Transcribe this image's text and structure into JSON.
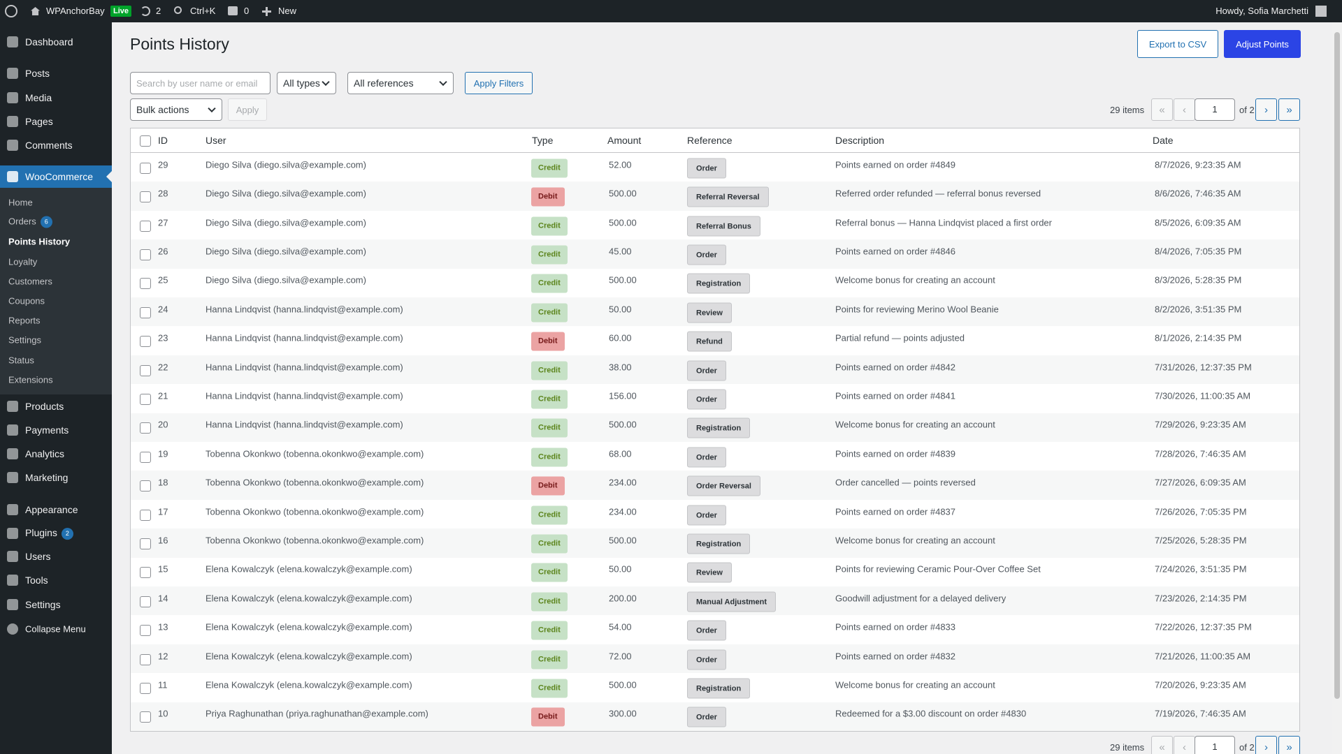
{
  "admin_bar": {
    "site": "WPAnchorBay",
    "live": "Live",
    "updates": 2,
    "search": "Ctrl+K",
    "comments": 0,
    "new": "New",
    "howdy": "Howdy, Sofia Marchetti"
  },
  "menu": {
    "top": [
      "Dashboard",
      "Posts",
      "Media",
      "Pages",
      "Comments"
    ],
    "woo": "WooCommerce",
    "woo_sub": [
      {
        "label": "Home"
      },
      {
        "label": "Orders",
        "badge": 6
      },
      {
        "label": "Points History"
      },
      {
        "label": "Loyalty"
      },
      {
        "label": "Customers"
      },
      {
        "label": "Coupons"
      },
      {
        "label": "Reports"
      },
      {
        "label": "Settings"
      },
      {
        "label": "Status"
      },
      {
        "label": "Extensions"
      }
    ],
    "bottom": [
      {
        "label": "Products"
      },
      {
        "label": "Payments"
      },
      {
        "label": "Analytics"
      },
      {
        "label": "Marketing"
      },
      {
        "label": "Appearance"
      },
      {
        "label": "Plugins",
        "badge": 2
      },
      {
        "label": "Users"
      },
      {
        "label": "Tools"
      },
      {
        "label": "Settings"
      },
      {
        "label": "Collapse Menu"
      }
    ]
  },
  "header": {
    "title": "Points History",
    "export": "Export to CSV",
    "adjust": "Adjust Points"
  },
  "filters": {
    "search_placeholder": "Search by user name or email",
    "types": "All types",
    "references": "All references",
    "apply_filters": "Apply Filters",
    "bulk": "Bulk actions",
    "apply": "Apply"
  },
  "pagination": {
    "items": "29 items",
    "first": "«",
    "prev": "‹",
    "page": "1",
    "of": "of 2",
    "next": "›",
    "last": "»"
  },
  "table": {
    "columns": [
      "ID",
      "User",
      "Type",
      "Amount",
      "Reference",
      "Description",
      "Date"
    ],
    "rows": [
      [
        "29",
        "Diego Silva (diego.silva@example.com)",
        "Credit",
        "52.00",
        "Order",
        "Points earned on order #4849",
        "8/7/2026, 9:23:35 AM"
      ],
      [
        "28",
        "Diego Silva (diego.silva@example.com)",
        "Debit",
        "500.00",
        "Referral Reversal",
        "Referred order refunded — referral bonus reversed",
        "8/6/2026, 7:46:35 AM"
      ],
      [
        "27",
        "Diego Silva (diego.silva@example.com)",
        "Credit",
        "500.00",
        "Referral Bonus",
        "Referral bonus — Hanna Lindqvist placed a first order",
        "8/5/2026, 6:09:35 AM"
      ],
      [
        "26",
        "Diego Silva (diego.silva@example.com)",
        "Credit",
        "45.00",
        "Order",
        "Points earned on order #4846",
        "8/4/2026, 7:05:35 PM"
      ],
      [
        "25",
        "Diego Silva (diego.silva@example.com)",
        "Credit",
        "500.00",
        "Registration",
        "Welcome bonus for creating an account",
        "8/3/2026, 5:28:35 PM"
      ],
      [
        "24",
        "Hanna Lindqvist (hanna.lindqvist@example.com)",
        "Credit",
        "50.00",
        "Review",
        "Points for reviewing Merino Wool Beanie",
        "8/2/2026, 3:51:35 PM"
      ],
      [
        "23",
        "Hanna Lindqvist (hanna.lindqvist@example.com)",
        "Debit",
        "60.00",
        "Refund",
        "Partial refund — points adjusted",
        "8/1/2026, 2:14:35 PM"
      ],
      [
        "22",
        "Hanna Lindqvist (hanna.lindqvist@example.com)",
        "Credit",
        "38.00",
        "Order",
        "Points earned on order #4842",
        "7/31/2026, 12:37:35 PM"
      ],
      [
        "21",
        "Hanna Lindqvist (hanna.lindqvist@example.com)",
        "Credit",
        "156.00",
        "Order",
        "Points earned on order #4841",
        "7/30/2026, 11:00:35 AM"
      ],
      [
        "20",
        "Hanna Lindqvist (hanna.lindqvist@example.com)",
        "Credit",
        "500.00",
        "Registration",
        "Welcome bonus for creating an account",
        "7/29/2026, 9:23:35 AM"
      ],
      [
        "19",
        "Tobenna Okonkwo (tobenna.okonkwo@example.com)",
        "Credit",
        "68.00",
        "Order",
        "Points earned on order #4839",
        "7/28/2026, 7:46:35 AM"
      ],
      [
        "18",
        "Tobenna Okonkwo (tobenna.okonkwo@example.com)",
        "Debit",
        "234.00",
        "Order Reversal",
        "Order cancelled — points reversed",
        "7/27/2026, 6:09:35 AM"
      ],
      [
        "17",
        "Tobenna Okonkwo (tobenna.okonkwo@example.com)",
        "Credit",
        "234.00",
        "Order",
        "Points earned on order #4837",
        "7/26/2026, 7:05:35 PM"
      ],
      [
        "16",
        "Tobenna Okonkwo (tobenna.okonkwo@example.com)",
        "Credit",
        "500.00",
        "Registration",
        "Welcome bonus for creating an account",
        "7/25/2026, 5:28:35 PM"
      ],
      [
        "15",
        "Elena Kowalczyk (elena.kowalczyk@example.com)",
        "Credit",
        "50.00",
        "Review",
        "Points for reviewing Ceramic Pour-Over Coffee Set",
        "7/24/2026, 3:51:35 PM"
      ],
      [
        "14",
        "Elena Kowalczyk (elena.kowalczyk@example.com)",
        "Credit",
        "200.00",
        "Manual Adjustment",
        "Goodwill adjustment for a delayed delivery",
        "7/23/2026, 2:14:35 PM"
      ],
      [
        "13",
        "Elena Kowalczyk (elena.kowalczyk@example.com)",
        "Credit",
        "54.00",
        "Order",
        "Points earned on order #4833",
        "7/22/2026, 12:37:35 PM"
      ],
      [
        "12",
        "Elena Kowalczyk (elena.kowalczyk@example.com)",
        "Credit",
        "72.00",
        "Order",
        "Points earned on order #4832",
        "7/21/2026, 11:00:35 AM"
      ],
      [
        "11",
        "Elena Kowalczyk (elena.kowalczyk@example.com)",
        "Credit",
        "500.00",
        "Registration",
        "Welcome bonus for creating an account",
        "7/20/2026, 9:23:35 AM"
      ],
      [
        "10",
        "Priya Raghunathan (priya.raghunathan@example.com)",
        "Debit",
        "300.00",
        "Order",
        "Redeemed for a $3.00 discount on order #4830",
        "7/19/2026, 7:46:35 AM"
      ]
    ]
  }
}
